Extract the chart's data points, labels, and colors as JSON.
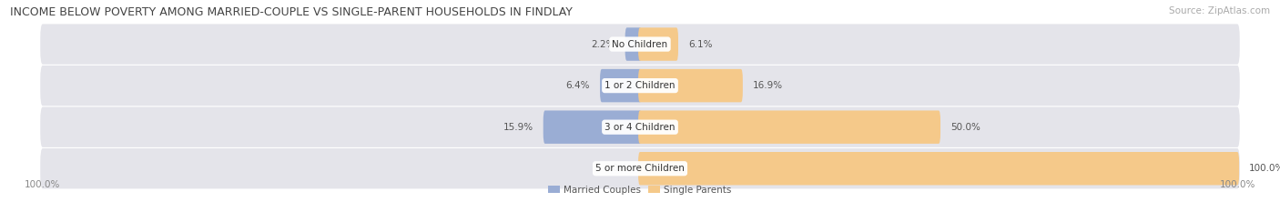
{
  "title": "INCOME BELOW POVERTY AMONG MARRIED-COUPLE VS SINGLE-PARENT HOUSEHOLDS IN FINDLAY",
  "source": "Source: ZipAtlas.com",
  "categories": [
    "No Children",
    "1 or 2 Children",
    "3 or 4 Children",
    "5 or more Children"
  ],
  "married_values": [
    2.2,
    6.4,
    15.9,
    0.0
  ],
  "single_values": [
    6.1,
    16.9,
    50.0,
    100.0
  ],
  "married_color": "#9aadd4",
  "single_color": "#f5c98a",
  "bar_bg_color": "#e4e4ea",
  "max_value": 100.0,
  "legend_labels": [
    "Married Couples",
    "Single Parents"
  ],
  "left_axis_label": "100.0%",
  "right_axis_label": "100.0%",
  "title_fontsize": 9.0,
  "source_fontsize": 7.5,
  "label_fontsize": 7.5,
  "category_fontsize": 7.5,
  "value_fontsize": 7.5
}
